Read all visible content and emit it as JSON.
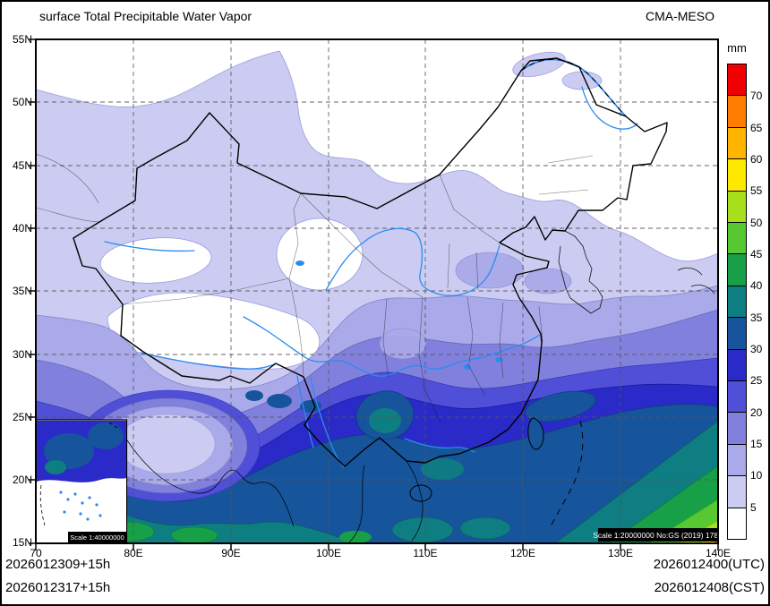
{
  "header": {
    "title": "surface Total Precipitable Water Vapor",
    "model": "CMA-MESO"
  },
  "colorbar": {
    "unit": "mm",
    "tick_labels": [
      "70",
      "65",
      "60",
      "55",
      "50",
      "45",
      "40",
      "35",
      "30",
      "25",
      "20",
      "15",
      "10",
      "5"
    ],
    "colors_top_to_bottom": [
      "#f00000",
      "#ff7d00",
      "#ffb400",
      "#ffe800",
      "#a8e01e",
      "#57c832",
      "#18a048",
      "#0e7e82",
      "#16559b",
      "#2a2ac8",
      "#4f4fd8",
      "#8181dd",
      "#aaaaea",
      "#ccccf2",
      "#ffffff"
    ]
  },
  "axes": {
    "lat_labels": [
      "55N",
      "50N",
      "45N",
      "40N",
      "35N",
      "30N",
      "25N",
      "20N",
      "15N"
    ],
    "lon_labels": [
      "70",
      "80E",
      "90E",
      "100E",
      "110E",
      "120E",
      "130E",
      "140E"
    ]
  },
  "footer": {
    "run_line1": "2026012309+15h",
    "run_line2": "2026012317+15h",
    "valid_line1": "2026012400(UTC)",
    "valid_line2": "2026012408(CST)"
  },
  "map": {
    "inset_scale": "Scale 1:40000000",
    "scale_note": "Scale 1:20000000 No:GS (2019) 1786"
  },
  "chart_data": {
    "type": "heatmap",
    "title": "surface Total Precipitable Water Vapor",
    "model": "CMA-MESO",
    "units": "mm",
    "contour_levels": [
      5,
      10,
      15,
      20,
      25,
      30,
      35,
      40,
      45,
      50,
      55,
      60,
      65,
      70
    ],
    "level_colors_low_to_high": [
      "#ffffff",
      "#ccccf2",
      "#aaaaea",
      "#8181dd",
      "#4f4fd8",
      "#2a2ac8",
      "#16559b",
      "#0e7e82",
      "#18a048",
      "#57c832",
      "#a8e01e",
      "#ffe800",
      "#ffb400",
      "#ff7d00",
      "#f00000"
    ],
    "lon_range_deg_e": [
      70,
      140
    ],
    "lat_range_deg_n": [
      15,
      55
    ],
    "legend_position": "right",
    "grid": "dashed 5-deg latitude / 10-deg longitude",
    "pattern_summary": "Dry (<5mm) over N China, NE China and Tibetan Plateau; 5-20mm band across NW and central China; 20-35mm over S China coast and Yunnan; 35-70mm tropical bands in SW and SE corners of the domain"
  }
}
